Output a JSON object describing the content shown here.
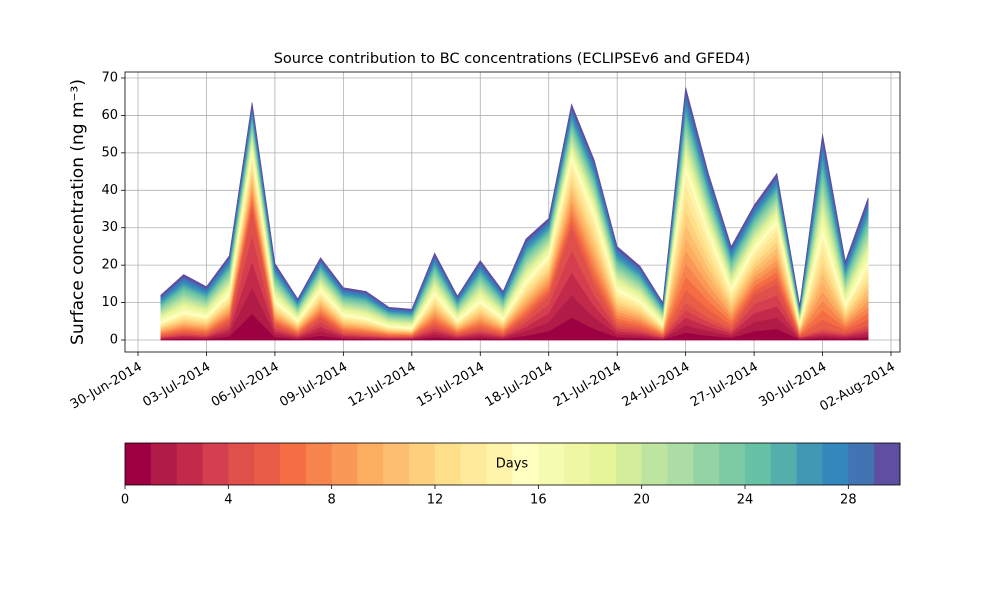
{
  "chart_data": {
    "type": "stacked_area",
    "title": "Source contribution to BC concentrations (ECLIPSEv6 and GFED4)",
    "ylabel": "Surface concentration (ng m⁻³)",
    "x": [
      "2014-07-01",
      "2014-07-02",
      "2014-07-03",
      "2014-07-04",
      "2014-07-05",
      "2014-07-06",
      "2014-07-07",
      "2014-07-08",
      "2014-07-09",
      "2014-07-10",
      "2014-07-11",
      "2014-07-12",
      "2014-07-13",
      "2014-07-14",
      "2014-07-15",
      "2014-07-16",
      "2014-07-17",
      "2014-07-18",
      "2014-07-19",
      "2014-07-20",
      "2014-07-21",
      "2014-07-22",
      "2014-07-23",
      "2014-07-24",
      "2014-07-25",
      "2014-07-26",
      "2014-07-27",
      "2014-07-28",
      "2014-07-29",
      "2014-07-30",
      "2014-07-31",
      "2014-08-01"
    ],
    "xlim": [
      "2014-06-30",
      "2014-08-02"
    ],
    "xticks": [
      {
        "value": "2014-06-30",
        "label": "30-Jun-2014"
      },
      {
        "value": "2014-07-03",
        "label": "03-Jul-2014"
      },
      {
        "value": "2014-07-06",
        "label": "06-Jul-2014"
      },
      {
        "value": "2014-07-09",
        "label": "09-Jul-2014"
      },
      {
        "value": "2014-07-12",
        "label": "12-Jul-2014"
      },
      {
        "value": "2014-07-15",
        "label": "15-Jul-2014"
      },
      {
        "value": "2014-07-18",
        "label": "18-Jul-2014"
      },
      {
        "value": "2014-07-21",
        "label": "21-Jul-2014"
      },
      {
        "value": "2014-07-24",
        "label": "24-Jul-2014"
      },
      {
        "value": "2014-07-27",
        "label": "27-Jul-2014"
      },
      {
        "value": "2014-07-30",
        "label": "30-Jul-2014"
      },
      {
        "value": "2014-08-02",
        "label": "02-Aug-2014"
      }
    ],
    "ylim": [
      -3.2,
      71.6
    ],
    "yticks": [
      0,
      10,
      20,
      30,
      40,
      50,
      60,
      70
    ],
    "grid": true,
    "colorbar": {
      "label": "Days",
      "lim": [
        0,
        30
      ],
      "ticks": [
        0,
        4,
        8,
        12,
        16,
        20,
        24,
        28
      ]
    },
    "series": [
      {
        "color": "#9e0142",
        "values": [
          0.2,
          0.4,
          0.3,
          1,
          7,
          0.8,
          0.3,
          1.2,
          0.4,
          0.3,
          0.2,
          0.2,
          0.8,
          0.3,
          0.6,
          0.3,
          1.2,
          2.4,
          6,
          3,
          0.8,
          0.6,
          0.2,
          2,
          1.2,
          0.6,
          2.4,
          3,
          0.2,
          0.6,
          0.4,
          0.8
        ]
      },
      {
        "color": "#b01b47",
        "values": [
          0.2,
          0.4,
          0.3,
          1,
          7,
          0.8,
          0.3,
          1.2,
          0.4,
          0.3,
          0.2,
          0.2,
          0.8,
          0.3,
          0.6,
          0.3,
          1.2,
          2.4,
          6,
          3,
          0.8,
          0.6,
          0.2,
          2,
          1.2,
          0.6,
          2.4,
          3,
          0.2,
          0.6,
          0.4,
          0.8
        ]
      },
      {
        "color": "#c2294a",
        "values": [
          0.2,
          0.4,
          0.3,
          1,
          7,
          0.8,
          0.3,
          1.2,
          0.4,
          0.3,
          0.2,
          0.2,
          0.8,
          0.3,
          0.6,
          0.3,
          1.2,
          2.4,
          6,
          3,
          0.8,
          0.6,
          0.2,
          2,
          1.2,
          0.6,
          2.4,
          3,
          0.2,
          0.6,
          0.4,
          0.8
        ]
      },
      {
        "color": "#d53e4f",
        "values": [
          0.2,
          0.4,
          0.3,
          1,
          7,
          0.8,
          0.3,
          1.2,
          0.4,
          0.3,
          0.2,
          0.2,
          0.8,
          0.3,
          0.6,
          0.3,
          1.2,
          2.4,
          6,
          3,
          0.8,
          0.6,
          0.2,
          2,
          1.2,
          0.6,
          2.4,
          3,
          0.2,
          0.6,
          0.4,
          0.8
        ]
      },
      {
        "color": "#e0504a",
        "values": [
          0.2,
          0.4,
          0.3,
          1,
          7,
          0.8,
          0.3,
          1.2,
          0.4,
          0.3,
          0.2,
          0.2,
          0.8,
          0.3,
          0.6,
          0.3,
          1.2,
          2.4,
          6,
          3,
          0.8,
          0.6,
          0.2,
          2,
          1.2,
          0.6,
          2.4,
          3,
          0.2,
          0.6,
          0.4,
          0.8
        ]
      },
      {
        "color": "#e95d47",
        "values": [
          0.35,
          0.5,
          0.45,
          0.7,
          1.5,
          0.6,
          0.35,
          0.7,
          0.45,
          0.4,
          0.25,
          0.2,
          0.8,
          0.35,
          0.7,
          0.4,
          0.9,
          1,
          1.8,
          1.8,
          0.9,
          0.7,
          0.3,
          3.5,
          2.2,
          1,
          1.2,
          1.6,
          0.3,
          2.5,
          0.7,
          1.6
        ]
      },
      {
        "color": "#f46d43",
        "values": [
          0.35,
          0.5,
          0.45,
          0.7,
          1.5,
          0.6,
          0.35,
          0.7,
          0.45,
          0.4,
          0.25,
          0.2,
          0.8,
          0.35,
          0.7,
          0.4,
          0.9,
          1,
          1.8,
          1.8,
          0.9,
          0.7,
          0.3,
          3.5,
          2.2,
          1,
          1.2,
          1.6,
          0.3,
          2.5,
          0.7,
          1.6
        ]
      },
      {
        "color": "#f7834d",
        "values": [
          0.35,
          0.5,
          0.45,
          0.7,
          1.5,
          0.6,
          0.35,
          0.7,
          0.45,
          0.4,
          0.25,
          0.2,
          0.8,
          0.35,
          0.7,
          0.4,
          0.9,
          1,
          1.8,
          1.8,
          0.9,
          0.7,
          0.3,
          3.5,
          2.2,
          1,
          1.2,
          1.6,
          0.3,
          2.5,
          0.7,
          1.6
        ]
      },
      {
        "color": "#fa9857",
        "values": [
          0.35,
          0.5,
          0.45,
          0.7,
          1.5,
          0.6,
          0.35,
          0.7,
          0.45,
          0.4,
          0.25,
          0.2,
          0.8,
          0.35,
          0.7,
          0.4,
          0.9,
          1,
          1.8,
          1.8,
          0.9,
          0.7,
          0.3,
          3.5,
          2.2,
          1,
          1.2,
          1.6,
          0.3,
          2.5,
          0.7,
          1.6
        ]
      },
      {
        "color": "#fdae61",
        "values": [
          0.35,
          0.5,
          0.45,
          0.7,
          1.5,
          0.6,
          0.35,
          0.7,
          0.45,
          0.4,
          0.25,
          0.2,
          0.8,
          0.35,
          0.7,
          0.4,
          0.9,
          1,
          1.8,
          1.8,
          0.9,
          0.7,
          0.3,
          3.5,
          2.2,
          1,
          1.2,
          1.6,
          0.3,
          2.5,
          0.7,
          1.6
        ]
      },
      {
        "color": "#fdbf6f",
        "values": [
          0.35,
          0.5,
          0.45,
          0.7,
          1.5,
          0.6,
          0.35,
          0.7,
          0.45,
          0.4,
          0.25,
          0.2,
          0.8,
          0.35,
          0.7,
          0.4,
          0.9,
          1,
          1.8,
          1.8,
          0.9,
          0.7,
          0.3,
          3.5,
          2.2,
          1,
          1.2,
          1.6,
          0.3,
          2.5,
          0.7,
          1.6
        ]
      },
      {
        "color": "#fed07e",
        "values": [
          0.35,
          0.5,
          0.45,
          0.7,
          1.5,
          0.6,
          0.35,
          0.7,
          0.45,
          0.4,
          0.25,
          0.2,
          0.8,
          0.35,
          0.7,
          0.4,
          0.9,
          1,
          1.8,
          1.8,
          0.9,
          0.7,
          0.3,
          3.5,
          2.2,
          1,
          1.2,
          1.6,
          0.3,
          2.5,
          0.7,
          1.6
        ]
      },
      {
        "color": "#fee08b",
        "values": [
          0.35,
          0.5,
          0.45,
          0.7,
          1.5,
          0.6,
          0.35,
          0.7,
          0.45,
          0.4,
          0.25,
          0.2,
          0.8,
          0.35,
          0.7,
          0.4,
          0.9,
          1,
          1.8,
          1.8,
          0.9,
          0.7,
          0.3,
          3.5,
          2.2,
          1,
          1.2,
          1.6,
          0.3,
          2.5,
          0.7,
          1.6
        ]
      },
      {
        "color": "#feea9a",
        "values": [
          0.35,
          0.5,
          0.45,
          0.7,
          1.5,
          0.6,
          0.35,
          0.7,
          0.45,
          0.4,
          0.25,
          0.2,
          0.8,
          0.35,
          0.7,
          0.4,
          0.9,
          1,
          1.8,
          1.8,
          0.9,
          0.7,
          0.3,
          3.5,
          2.2,
          1,
          1.2,
          1.6,
          0.3,
          2.5,
          0.7,
          1.6
        ]
      },
      {
        "color": "#fff4aa",
        "values": [
          0.35,
          0.5,
          0.45,
          0.7,
          1.5,
          0.6,
          0.35,
          0.7,
          0.45,
          0.4,
          0.25,
          0.2,
          0.8,
          0.35,
          0.7,
          0.4,
          0.9,
          1,
          1.8,
          1.8,
          0.9,
          0.7,
          0.3,
          3.5,
          2.2,
          1,
          1.2,
          1.6,
          0.3,
          2.5,
          0.7,
          1.6
        ]
      },
      {
        "color": "#ffffbf",
        "values": [
          0.5,
          0.7,
          0.55,
          0.7,
          0.9,
          0.7,
          0.4,
          0.6,
          0.5,
          0.5,
          0.35,
          0.35,
          0.75,
          0.45,
          0.75,
          0.5,
          0.8,
          0.7,
          1,
          1,
          0.8,
          0.65,
          0.4,
          1.5,
          1.1,
          0.8,
          0.8,
          0.9,
          0.35,
          1.8,
          0.8,
          1.2
        ]
      },
      {
        "color": "#f6fbb2",
        "values": [
          0.5,
          0.7,
          0.55,
          0.7,
          0.9,
          0.7,
          0.4,
          0.6,
          0.5,
          0.5,
          0.35,
          0.35,
          0.75,
          0.45,
          0.75,
          0.5,
          0.8,
          0.7,
          1,
          1,
          0.8,
          0.65,
          0.4,
          1.5,
          1.1,
          0.8,
          0.8,
          0.9,
          0.35,
          1.8,
          0.8,
          1.2
        ]
      },
      {
        "color": "#eef8a4",
        "values": [
          0.5,
          0.7,
          0.55,
          0.7,
          0.9,
          0.7,
          0.4,
          0.6,
          0.5,
          0.5,
          0.35,
          0.35,
          0.75,
          0.45,
          0.75,
          0.5,
          0.8,
          0.7,
          1,
          1,
          0.8,
          0.65,
          0.4,
          1.5,
          1.1,
          0.8,
          0.8,
          0.9,
          0.35,
          1.8,
          0.8,
          1.2
        ]
      },
      {
        "color": "#e6f598",
        "values": [
          0.5,
          0.7,
          0.55,
          0.7,
          0.9,
          0.7,
          0.4,
          0.6,
          0.5,
          0.5,
          0.35,
          0.35,
          0.75,
          0.45,
          0.75,
          0.5,
          0.8,
          0.7,
          1,
          1,
          0.8,
          0.65,
          0.4,
          1.5,
          1.1,
          0.8,
          0.8,
          0.9,
          0.35,
          1.8,
          0.8,
          1.2
        ]
      },
      {
        "color": "#d3ed9c",
        "values": [
          0.5,
          0.7,
          0.55,
          0.7,
          0.9,
          0.7,
          0.4,
          0.6,
          0.5,
          0.5,
          0.35,
          0.35,
          0.75,
          0.45,
          0.75,
          0.5,
          0.8,
          0.7,
          1,
          1,
          0.8,
          0.65,
          0.4,
          1.5,
          1.1,
          0.8,
          0.8,
          0.9,
          0.35,
          1.8,
          0.8,
          1.2
        ]
      },
      {
        "color": "#bee5a0",
        "values": [
          0.5,
          0.7,
          0.55,
          0.7,
          0.9,
          0.7,
          0.4,
          0.6,
          0.5,
          0.5,
          0.35,
          0.35,
          0.75,
          0.45,
          0.75,
          0.5,
          0.8,
          0.7,
          1,
          1,
          0.8,
          0.65,
          0.4,
          1.5,
          1.1,
          0.8,
          0.8,
          0.9,
          0.35,
          1.8,
          0.8,
          1.2
        ]
      },
      {
        "color": "#abdda4",
        "values": [
          0.5,
          0.7,
          0.55,
          0.7,
          0.9,
          0.7,
          0.4,
          0.6,
          0.5,
          0.5,
          0.35,
          0.35,
          0.75,
          0.45,
          0.75,
          0.5,
          0.8,
          0.7,
          1,
          1,
          0.8,
          0.65,
          0.4,
          1.5,
          1.1,
          0.8,
          0.8,
          0.9,
          0.35,
          1.8,
          0.8,
          1.2
        ]
      },
      {
        "color": "#94d4a4",
        "values": [
          0.5,
          0.7,
          0.55,
          0.7,
          0.9,
          0.7,
          0.4,
          0.6,
          0.5,
          0.5,
          0.35,
          0.35,
          0.75,
          0.45,
          0.75,
          0.5,
          0.8,
          0.7,
          1,
          1,
          0.8,
          0.65,
          0.4,
          1.5,
          1.1,
          0.8,
          0.8,
          0.9,
          0.35,
          1.8,
          0.8,
          1.2
        ]
      },
      {
        "color": "#7dcba4",
        "values": [
          0.5,
          0.7,
          0.55,
          0.7,
          0.9,
          0.7,
          0.4,
          0.6,
          0.5,
          0.5,
          0.35,
          0.35,
          0.75,
          0.45,
          0.75,
          0.5,
          0.8,
          0.7,
          1,
          1,
          0.8,
          0.65,
          0.4,
          1.5,
          1.1,
          0.8,
          0.8,
          0.9,
          0.35,
          1.8,
          0.8,
          1.2
        ]
      },
      {
        "color": "#66c2a5",
        "values": [
          0.5,
          0.7,
          0.55,
          0.7,
          0.9,
          0.7,
          0.4,
          0.6,
          0.5,
          0.5,
          0.35,
          0.35,
          0.75,
          0.45,
          0.75,
          0.5,
          0.8,
          0.7,
          1,
          1,
          0.8,
          0.65,
          0.4,
          1.5,
          1.1,
          0.8,
          0.8,
          0.9,
          0.35,
          1.8,
          0.8,
          1.2
        ]
      },
      {
        "color": "#54aeac",
        "values": [
          0.5,
          0.7,
          0.55,
          0.7,
          0.9,
          0.7,
          0.4,
          0.6,
          0.5,
          0.5,
          0.35,
          0.35,
          0.75,
          0.45,
          0.75,
          0.5,
          0.8,
          0.7,
          1,
          1,
          0.8,
          0.65,
          0.4,
          1.5,
          1.1,
          0.8,
          0.8,
          0.9,
          0.35,
          1.8,
          0.8,
          1.2
        ]
      },
      {
        "color": "#4198b4",
        "values": [
          0.5,
          0.7,
          0.55,
          0.7,
          0.9,
          0.7,
          0.4,
          0.6,
          0.5,
          0.5,
          0.35,
          0.35,
          0.75,
          0.45,
          0.75,
          0.5,
          0.8,
          0.7,
          1,
          1,
          0.8,
          0.65,
          0.4,
          1.5,
          1.1,
          0.8,
          0.8,
          0.9,
          0.35,
          1.8,
          0.8,
          1.2
        ]
      },
      {
        "color": "#3288bd",
        "values": [
          0.5,
          0.7,
          0.55,
          0.7,
          0.9,
          0.7,
          0.4,
          0.6,
          0.5,
          0.5,
          0.35,
          0.35,
          0.75,
          0.45,
          0.75,
          0.5,
          0.8,
          0.7,
          1,
          1,
          0.8,
          0.65,
          0.4,
          1.5,
          1.1,
          0.8,
          0.8,
          0.9,
          0.35,
          1.8,
          0.8,
          1.2
        ]
      },
      {
        "color": "#4273b3",
        "values": [
          0.5,
          0.7,
          0.55,
          0.7,
          0.9,
          0.7,
          0.4,
          0.6,
          0.5,
          0.5,
          0.35,
          0.35,
          0.75,
          0.45,
          0.75,
          0.5,
          0.8,
          0.7,
          1,
          1,
          0.8,
          0.65,
          0.4,
          1.5,
          1.1,
          0.8,
          0.8,
          0.9,
          0.35,
          1.8,
          0.8,
          1.2
        ]
      },
      {
        "color": "#5e4fa2",
        "values": [
          0.5,
          0.7,
          0.55,
          0.7,
          0.9,
          0.7,
          0.4,
          0.6,
          0.5,
          0.5,
          0.35,
          0.35,
          0.75,
          0.45,
          0.75,
          0.5,
          0.8,
          0.7,
          1,
          1,
          0.8,
          0.65,
          0.4,
          1.5,
          1.1,
          0.8,
          0.8,
          0.9,
          0.35,
          1.8,
          0.8,
          1.2
        ]
      }
    ]
  }
}
